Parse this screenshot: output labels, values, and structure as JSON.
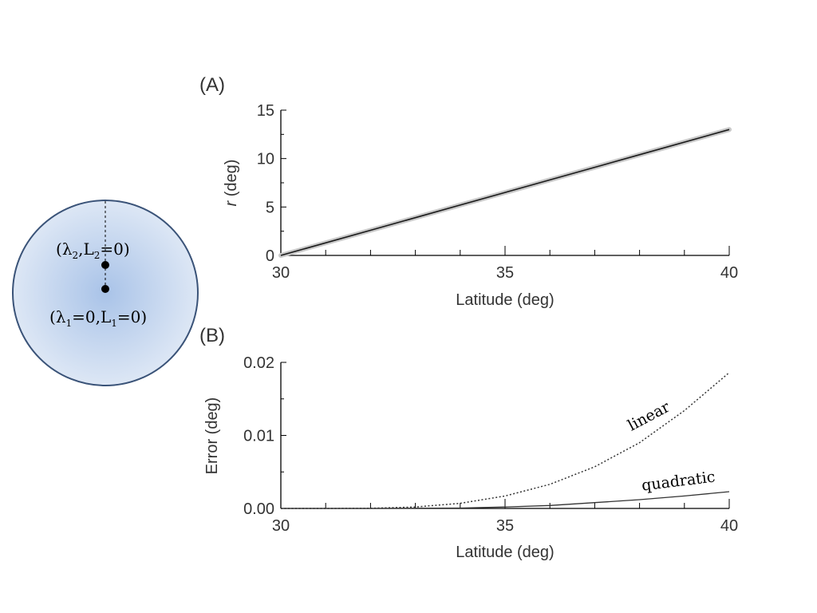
{
  "globe": {
    "point2_label": {
      "open": "(",
      "lambda": "λ",
      "lambda_sub": "2",
      "comma": ",",
      "L": "L",
      "L_sub": "2",
      "value": "=0)"
    },
    "point1_label": {
      "open": "(",
      "lambda": "λ",
      "lambda_sub": "1",
      "eq_zero": "=0,",
      "L": "L",
      "L_sub": "1",
      "value": "=0)"
    },
    "fill_center": "#a9c3e8",
    "fill_edge": "#dde7f5",
    "border": "#3a5378"
  },
  "chart_data": [
    {
      "panel_label": "(A)",
      "type": "line",
      "xlabel": "Latitude (deg)",
      "ylabel_italic": "r",
      "ylabel_rest": " (deg)",
      "xlim": [
        30,
        40
      ],
      "ylim": [
        0,
        15
      ],
      "x_ticks": [
        "30",
        "35",
        "40"
      ],
      "y_ticks": [
        "0",
        "5",
        "10",
        "15"
      ],
      "grid": false,
      "series": [
        {
          "x": [
            30,
            32,
            34,
            36,
            38,
            40
          ],
          "y": [
            0,
            2.6,
            5.2,
            7.8,
            10.4,
            13
          ]
        }
      ]
    },
    {
      "panel_label": "(B)",
      "type": "line",
      "xlabel": "Latitude (deg)",
      "ylabel": "Error (deg)",
      "xlim": [
        30,
        40
      ],
      "ylim": [
        0,
        0.02
      ],
      "x_ticks": [
        "30",
        "35",
        "40"
      ],
      "y_ticks": [
        "0.00",
        "0.01",
        "0.02"
      ],
      "grid": false,
      "series": [
        {
          "name": "linear",
          "style": "dotted",
          "x": [
            30,
            31,
            32,
            33,
            34,
            35,
            36,
            37,
            38,
            39,
            40
          ],
          "y": [
            0,
            0,
            2e-05,
            0.0002,
            0.0007,
            0.0017,
            0.0033,
            0.0057,
            0.009,
            0.0134,
            0.0186
          ]
        },
        {
          "name": "quadratic",
          "style": "solid",
          "x": [
            30,
            32,
            34,
            35,
            36,
            37,
            38,
            39,
            40
          ],
          "y": [
            0,
            0,
            5e-05,
            0.0002,
            0.0004,
            0.0008,
            0.0012,
            0.0017,
            0.0023
          ]
        }
      ]
    }
  ]
}
